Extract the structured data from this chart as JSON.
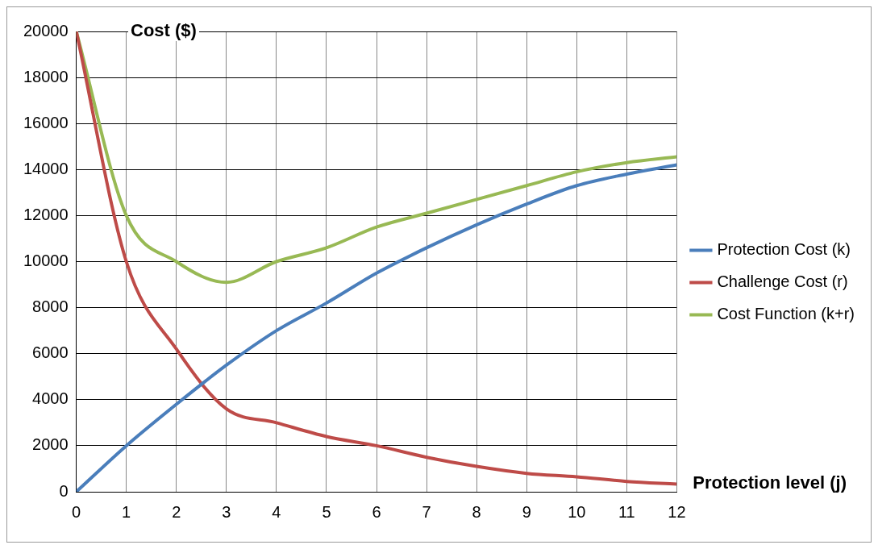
{
  "chart_data": {
    "type": "line",
    "xlabel": "Protection level (j)",
    "ylabel": "Cost ($)",
    "x": [
      0,
      1,
      2,
      3,
      4,
      5,
      6,
      7,
      8,
      9,
      10,
      11,
      12
    ],
    "series": [
      {
        "name": "Protection Cost (k)",
        "color": "#4a7ebb",
        "values": [
          0,
          2000,
          3800,
          5500,
          7000,
          8200,
          9500,
          10600,
          11600,
          12500,
          13300,
          13800,
          14200
        ]
      },
      {
        "name": "Challenge Cost (r)",
        "color": "#be4b48",
        "values": [
          20000,
          10000,
          6200,
          3600,
          3000,
          2400,
          2000,
          1500,
          1100,
          800,
          650,
          450,
          330
        ]
      },
      {
        "name": "Cost Function (k+r)",
        "color": "#98b954",
        "values": [
          20000,
          12000,
          10000,
          9100,
          10000,
          10600,
          11500,
          12100,
          12700,
          13300,
          13900,
          14300,
          14550
        ]
      }
    ],
    "xlim": [
      0,
      12
    ],
    "xticks": [
      0,
      1,
      2,
      3,
      4,
      5,
      6,
      7,
      8,
      9,
      10,
      11,
      12
    ],
    "ylim": [
      0,
      20000
    ],
    "yticks": [
      0,
      2000,
      4000,
      6000,
      8000,
      10000,
      12000,
      14000,
      16000,
      18000,
      20000
    ],
    "grid": true,
    "legend": "right",
    "marker": "none",
    "line_style": "solid"
  }
}
